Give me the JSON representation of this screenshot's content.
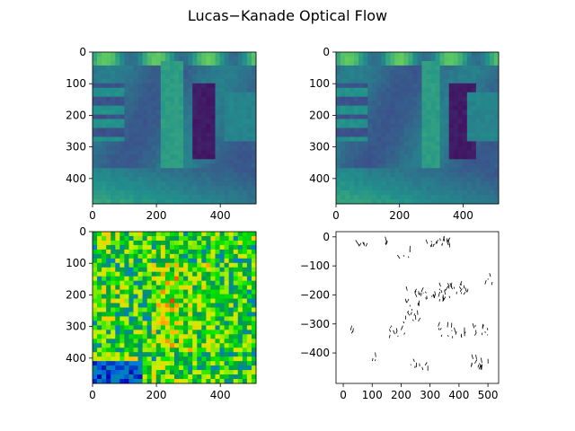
{
  "figure": {
    "title": "Lucas−Kanade Optical Flow"
  },
  "chart_data": [
    {
      "type": "heatmap",
      "panel": "top-left",
      "description_colormap": "viridis",
      "image_size": [
        512,
        480
      ],
      "xlim": [
        0,
        512
      ],
      "ylim": [
        480,
        0
      ],
      "xticks": [
        0,
        200,
        400
      ],
      "yticks": [
        0,
        100,
        200,
        300,
        400
      ]
    },
    {
      "type": "heatmap",
      "panel": "top-right",
      "description_colormap": "viridis",
      "image_size": [
        512,
        480
      ],
      "xlim": [
        0,
        512
      ],
      "ylim": [
        480,
        0
      ],
      "xticks": [
        0,
        200,
        400
      ],
      "yticks": [
        0,
        100,
        200,
        300,
        400
      ]
    },
    {
      "type": "heatmap",
      "panel": "bottom-left",
      "description_colormap": "nipy_spectral",
      "image_size": [
        512,
        480
      ],
      "xlim": [
        0,
        512
      ],
      "ylim": [
        480,
        0
      ],
      "xticks": [
        0,
        200,
        400
      ],
      "yticks": [
        0,
        100,
        200,
        300,
        400
      ]
    },
    {
      "type": "scatter",
      "panel": "bottom-right",
      "description": "quiver (flow vectors)",
      "xlim": [
        -25,
        537
      ],
      "ylim": [
        -505,
        18
      ],
      "xticks": [
        0,
        100,
        200,
        300,
        400,
        500
      ],
      "yticks": [
        0,
        -100,
        -200,
        -300,
        -400
      ],
      "ytick_labels": [
        "0",
        "−100",
        "−200",
        "−300",
        "−400"
      ],
      "clusters": [
        {
          "x": 60,
          "y": -32,
          "n": 6,
          "sx": 20,
          "sy": 6
        },
        {
          "x": 150,
          "y": -20,
          "n": 4,
          "sx": 15,
          "sy": 8
        },
        {
          "x": 330,
          "y": -25,
          "n": 20,
          "sx": 40,
          "sy": 12
        },
        {
          "x": 210,
          "y": -60,
          "n": 5,
          "sx": 30,
          "sy": 15
        },
        {
          "x": 250,
          "y": -240,
          "n": 30,
          "sx": 40,
          "sy": 60
        },
        {
          "x": 180,
          "y": -330,
          "n": 10,
          "sx": 30,
          "sy": 20
        },
        {
          "x": 340,
          "y": -200,
          "n": 22,
          "sx": 35,
          "sy": 30
        },
        {
          "x": 400,
          "y": -180,
          "n": 14,
          "sx": 30,
          "sy": 20
        },
        {
          "x": 370,
          "y": -330,
          "n": 16,
          "sx": 50,
          "sy": 25
        },
        {
          "x": 480,
          "y": -330,
          "n": 10,
          "sx": 30,
          "sy": 20
        },
        {
          "x": 470,
          "y": -440,
          "n": 14,
          "sx": 40,
          "sy": 20
        },
        {
          "x": 260,
          "y": -450,
          "n": 8,
          "sx": 40,
          "sy": 20
        },
        {
          "x": 500,
          "y": -150,
          "n": 4,
          "sx": 15,
          "sy": 20
        },
        {
          "x": 30,
          "y": -320,
          "n": 3,
          "sx": 15,
          "sy": 15
        },
        {
          "x": 100,
          "y": -420,
          "n": 3,
          "sx": 20,
          "sy": 20
        }
      ]
    }
  ]
}
